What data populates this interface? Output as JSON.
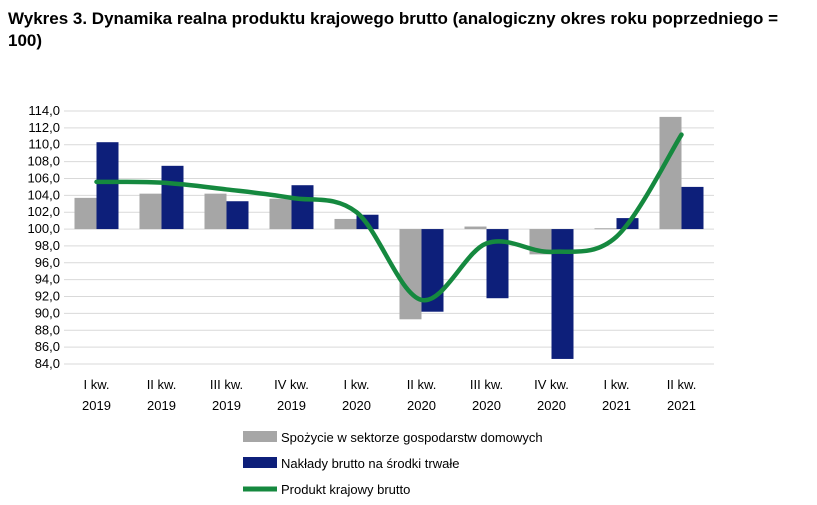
{
  "chart_data": {
    "type": "bar",
    "title": "Wykres 3. Dynamika realna produktu krajowego brutto (analogiczny okres roku poprzedniego = 100)",
    "categories": [
      [
        "I kw.",
        "2019"
      ],
      [
        "II kw.",
        "2019"
      ],
      [
        "III kw.",
        "2019"
      ],
      [
        "IV kw.",
        "2019"
      ],
      [
        "I kw.",
        "2020"
      ],
      [
        "II kw.",
        "2020"
      ],
      [
        "III kw.",
        "2020"
      ],
      [
        "IV kw.",
        "2020"
      ],
      [
        "I kw.",
        "2021"
      ],
      [
        "II kw.",
        "2021"
      ]
    ],
    "baseline": 100,
    "ylim": [
      84,
      114
    ],
    "ytick_step": 2,
    "yticks": [
      "114,0",
      "112,0",
      "110,0",
      "108,0",
      "106,0",
      "104,0",
      "102,0",
      "100,0",
      "98,0",
      "96,0",
      "94,0",
      "92,0",
      "90,0",
      "88,0",
      "86,0",
      "84,0"
    ],
    "grid": true,
    "series": [
      {
        "name": "Spożycie w sektorze gospodarstw domowych",
        "kind": "bar",
        "color": "#a6a6a6",
        "values": [
          103.7,
          104.2,
          104.2,
          103.6,
          101.2,
          89.3,
          100.3,
          97.0,
          100.1,
          113.3
        ]
      },
      {
        "name": "Nakłady brutto na środki trwałe",
        "kind": "bar",
        "color": "#0d1f7a",
        "values": [
          110.3,
          107.5,
          103.3,
          105.2,
          101.7,
          90.2,
          91.8,
          84.6,
          101.3,
          105.0
        ]
      },
      {
        "name": "Produkt krajowy brutto",
        "kind": "line",
        "color": "#15893f",
        "values": [
          105.6,
          105.5,
          104.7,
          103.7,
          102.0,
          91.6,
          98.3,
          97.3,
          99.1,
          111.2
        ]
      }
    ],
    "legend_position": "bottom"
  }
}
